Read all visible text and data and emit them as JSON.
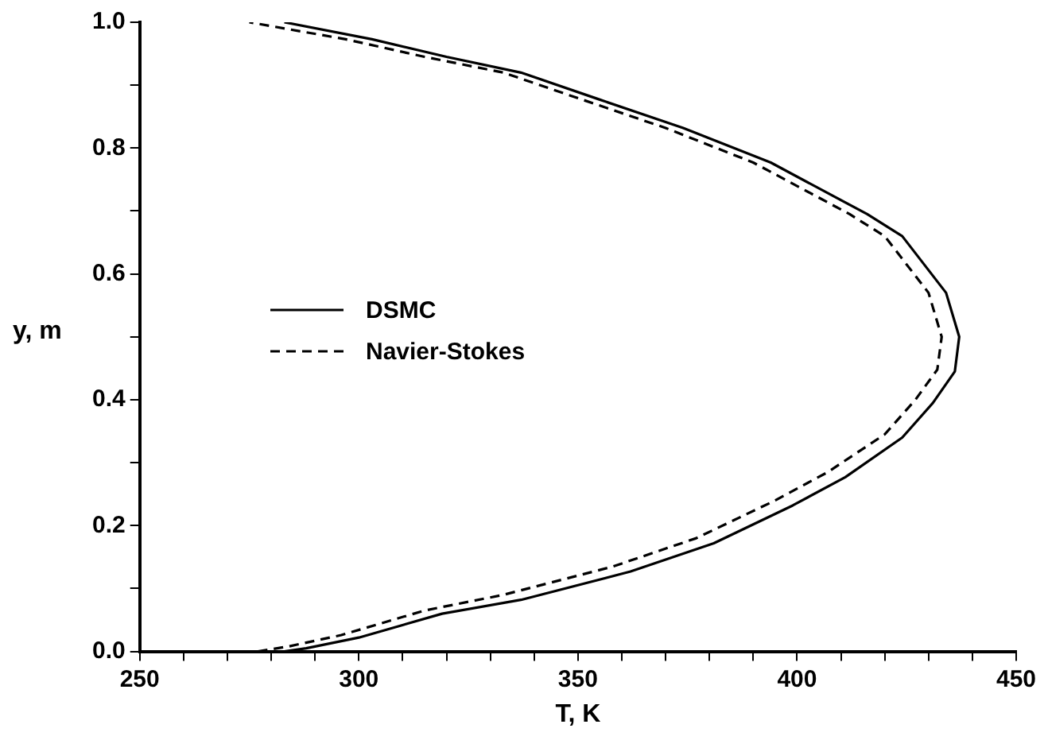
{
  "chart_data": {
    "type": "line",
    "xlabel": "T, K",
    "ylabel": "y, m",
    "legend": "left",
    "grid": false,
    "marker": "none",
    "xlim": [
      250,
      450
    ],
    "ylim": [
      0,
      1
    ],
    "xticks": [
      250,
      {
        "value": 260,
        "label": null
      },
      {
        "value": 270,
        "label": null
      },
      {
        "value": 280,
        "label": null
      },
      {
        "value": 290,
        "label": null
      },
      300,
      {
        "value": 310,
        "label": null
      },
      {
        "value": 320,
        "label": null
      },
      {
        "value": 330,
        "label": null
      },
      {
        "value": 340,
        "label": null
      },
      350,
      {
        "value": 360,
        "label": null
      },
      {
        "value": 370,
        "label": null
      },
      {
        "value": 380,
        "label": null
      },
      {
        "value": 390,
        "label": null
      },
      400,
      {
        "value": 410,
        "label": null
      },
      {
        "value": 420,
        "label": null
      },
      {
        "value": 430,
        "label": null
      },
      {
        "value": 440,
        "label": null
      },
      450
    ],
    "yticks": [
      {
        "value": 0,
        "label": "0.0"
      },
      {
        "value": 0.1,
        "label": null
      },
      {
        "value": 0.2,
        "label": "0.2"
      },
      {
        "value": 0.3,
        "label": null
      },
      {
        "value": 0.4,
        "label": "0.4"
      },
      {
        "value": 0.5,
        "label": null
      },
      {
        "value": 0.6,
        "label": "0.6"
      },
      {
        "value": 0.7,
        "label": null
      },
      {
        "value": 0.8,
        "label": "0.8"
      },
      {
        "value": 0.9,
        "label": null
      },
      {
        "value": 1,
        "label": "1.0"
      }
    ],
    "series": [
      {
        "name": "DSMC",
        "color": "#000000",
        "line_style": "solid",
        "x": [
          283,
          288,
          300,
          319,
          337,
          362,
          381,
          399,
          411,
          424,
          431,
          436,
          437,
          434,
          424,
          416,
          394,
          374,
          355,
          337,
          320,
          303,
          283
        ],
        "values": [
          0,
          0.005,
          0.022,
          0.06,
          0.082,
          0.127,
          0.172,
          0.232,
          0.277,
          0.34,
          0.395,
          0.445,
          0.5,
          0.57,
          0.66,
          0.695,
          0.777,
          0.832,
          0.877,
          0.92,
          0.945,
          0.973,
          1
        ]
      },
      {
        "name": "Navier-Stokes",
        "color": "#000000",
        "line_style": "dashed",
        "x": [
          277,
          284,
          296,
          315,
          333,
          358,
          377,
          395,
          407,
          420,
          427,
          432,
          433,
          430,
          420,
          412,
          390,
          370,
          351,
          333,
          315,
          297,
          275
        ],
        "values": [
          0,
          0.008,
          0.026,
          0.065,
          0.09,
          0.135,
          0.18,
          0.24,
          0.285,
          0.345,
          0.4,
          0.448,
          0.5,
          0.57,
          0.66,
          0.695,
          0.777,
          0.832,
          0.877,
          0.92,
          0.945,
          0.973,
          1
        ]
      }
    ]
  }
}
